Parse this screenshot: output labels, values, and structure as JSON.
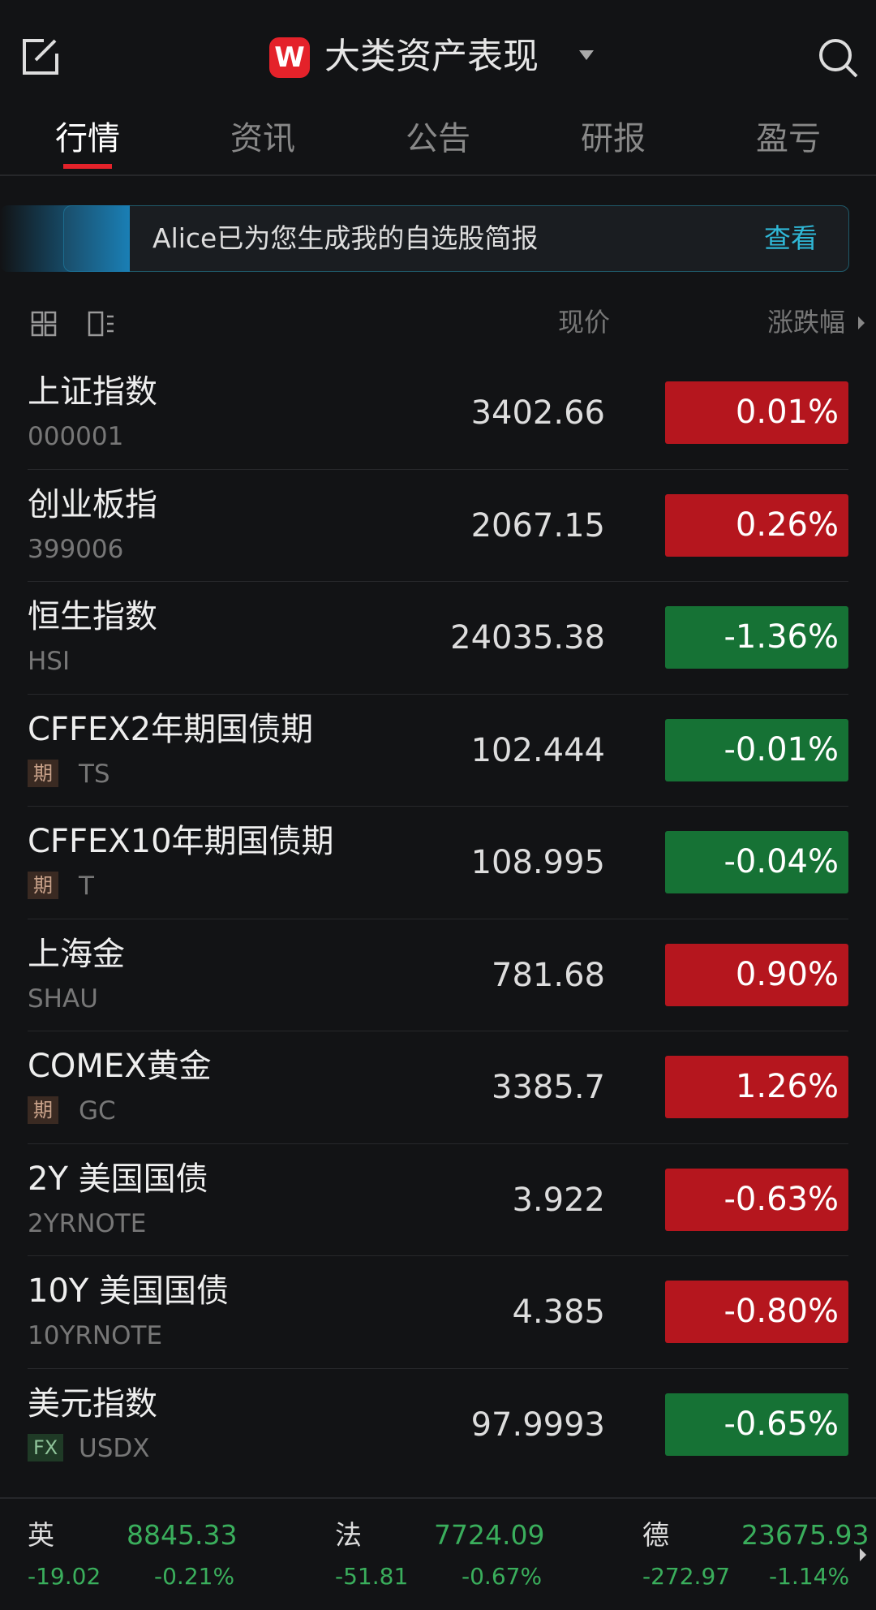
{
  "header": {
    "title": "大类资产表现"
  },
  "tabs": [
    "行情",
    "资讯",
    "公告",
    "研报",
    "盈亏"
  ],
  "banner": {
    "text": "Alice已为您生成我的自选股简报",
    "action": "查看"
  },
  "columns": {
    "price": "现价",
    "change": "涨跌幅"
  },
  "rows": [
    {
      "name": "上证指数",
      "code": "000001",
      "price": "3402.66",
      "change": "0.01%",
      "color": "#b5161e"
    },
    {
      "name": "创业板指",
      "code": "399006",
      "price": "2067.15",
      "change": "0.26%",
      "color": "#b5161e"
    },
    {
      "name": "恒生指数",
      "code": "HSI",
      "price": "24035.38",
      "change": "-1.36%",
      "color": "#167235"
    },
    {
      "name": "CFFEX2年期国债期",
      "tag": "期",
      "code": "TS",
      "price": "102.444",
      "change": "-0.01%",
      "color": "#167235"
    },
    {
      "name": "CFFEX10年期国债期",
      "tag": "期",
      "code": "T",
      "price": "108.995",
      "change": "-0.04%",
      "color": "#167235"
    },
    {
      "name": "上海金",
      "code": "SHAU",
      "price": "781.68",
      "change": "0.90%",
      "color": "#b5161e"
    },
    {
      "name": "COMEX黄金",
      "tag": "期",
      "code": "GC",
      "price": "3385.7",
      "change": "1.26%",
      "color": "#b5161e"
    },
    {
      "name": "2Y 美国国债",
      "code": "2YRNOTE",
      "price": "3.922",
      "change": "-0.63%",
      "color": "#b5161e"
    },
    {
      "name": "10Y 美国国债",
      "code": "10YRNOTE",
      "price": "4.385",
      "change": "-0.80%",
      "color": "#b5161e"
    },
    {
      "name": "美元指数",
      "tag": "FX",
      "code": "USDX",
      "price": "97.9993",
      "change": "-0.65%",
      "color": "#167235"
    }
  ],
  "footer": [
    {
      "name": "英",
      "value": "8845.33",
      "change": "-19.02",
      "pct": "-0.21%"
    },
    {
      "name": "法",
      "value": "7724.09",
      "change": "-51.81",
      "pct": "-0.67%"
    },
    {
      "name": "德",
      "value": "23675.93",
      "change": "-272.97",
      "pct": "-1.14%"
    }
  ]
}
